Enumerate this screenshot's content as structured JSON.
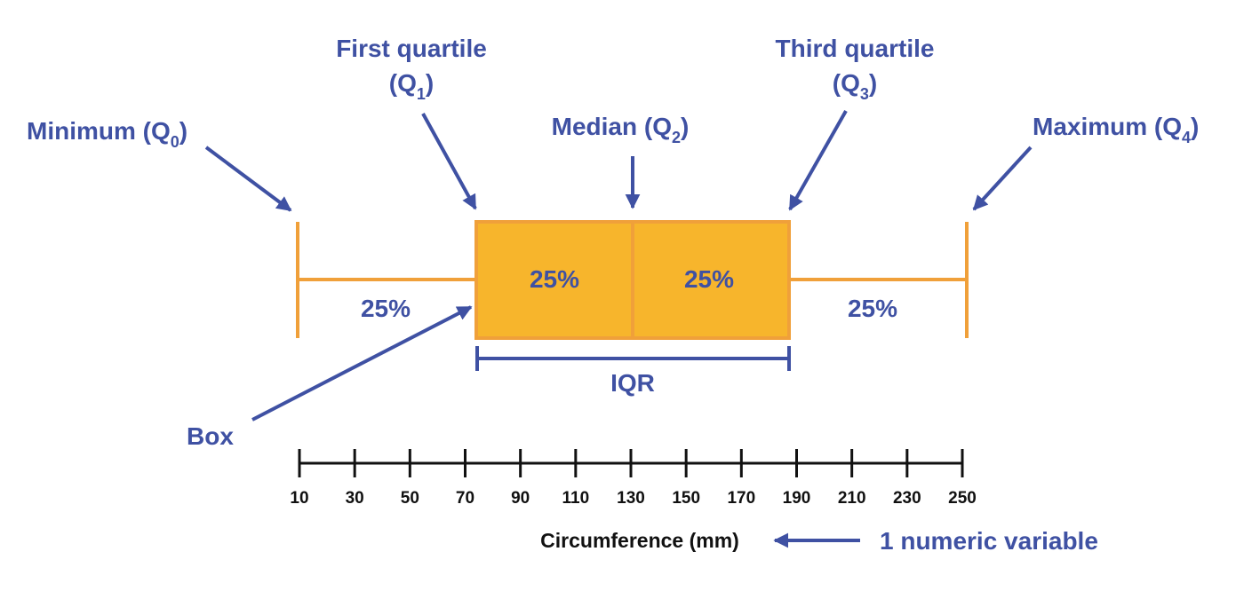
{
  "labels": {
    "minimum": {
      "text": "Minimum (Q",
      "sub": "0",
      "close": ")"
    },
    "first_quartile_line1": "First quartile",
    "first_quartile": {
      "text": "(Q",
      "sub": "1",
      "close": ")"
    },
    "median": {
      "text": "Median (Q",
      "sub": "2",
      "close": ")"
    },
    "third_quartile_line1": "Third quartile",
    "third_quartile": {
      "text": "(Q",
      "sub": "3",
      "close": ")"
    },
    "maximum": {
      "text": "Maximum (Q",
      "sub": "4",
      "close": ")"
    },
    "box": "Box",
    "iqr": "IQR"
  },
  "percentages": {
    "left_whisker": "25%",
    "box_left": "25%",
    "box_right": "25%",
    "right_whisker": "25%"
  },
  "axis": {
    "min": 10,
    "max": 250,
    "ticks": [
      10,
      30,
      50,
      70,
      90,
      110,
      130,
      150,
      170,
      190,
      210,
      230,
      250
    ],
    "title": "Circumference (mm)",
    "variable_note": "1 numeric variable"
  },
  "boxplot": {
    "min": 10,
    "q1": 74,
    "median": 130,
    "q3": 187,
    "max": 250
  },
  "colors": {
    "label_blue": "#3f51a3",
    "box_fill": "#f7b52c",
    "box_stroke": "#f0a03a",
    "axis": "#111111"
  }
}
